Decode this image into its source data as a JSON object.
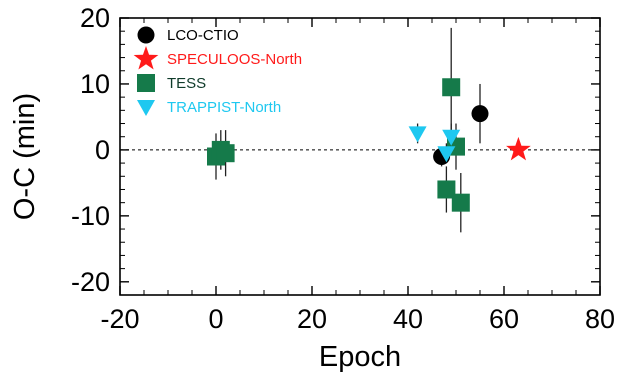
{
  "chart_data": {
    "type": "scatter",
    "xlabel": "Epoch",
    "ylabel": "O-C (min)",
    "xlim": [
      -20,
      80
    ],
    "ylim": [
      -22,
      20
    ],
    "x_ticks": [
      -20,
      0,
      20,
      40,
      60,
      80
    ],
    "y_ticks": [
      -20,
      -10,
      0,
      10,
      20
    ],
    "reference_line": {
      "y": 0,
      "style": "dotted"
    },
    "legend_position": "top-left",
    "series": [
      {
        "name": "LCO-CTIO",
        "marker": "circle",
        "color": "#000000",
        "points": [
          {
            "x": 47,
            "y": -1,
            "err": 1.5
          },
          {
            "x": 55,
            "y": 5.5,
            "err": 4.5
          }
        ]
      },
      {
        "name": "SPECULOOS-North",
        "marker": "star",
        "color": "#ff1a1a",
        "points": [
          {
            "x": 63,
            "y": 0,
            "err": 0
          }
        ]
      },
      {
        "name": "TESS",
        "marker": "square",
        "color": "#157a4a",
        "points": [
          {
            "x": 0,
            "y": -1,
            "err": 3.5
          },
          {
            "x": 1,
            "y": 0,
            "err": 3
          },
          {
            "x": 2,
            "y": -0.5,
            "err": 3.5
          },
          {
            "x": 48,
            "y": -6,
            "err": 3.5
          },
          {
            "x": 49,
            "y": 9.5,
            "err": 9
          },
          {
            "x": 50,
            "y": 0.5,
            "err": 3.5
          },
          {
            "x": 51,
            "y": -8,
            "err": 4.5
          }
        ]
      },
      {
        "name": "TRAPPIST-North",
        "marker": "triangle-down",
        "color": "#1ec8f0",
        "points": [
          {
            "x": 42,
            "y": 2.5,
            "err": 1.5
          },
          {
            "x": 48,
            "y": -0.5,
            "err": 1.5
          },
          {
            "x": 49,
            "y": 2,
            "err": 2
          }
        ]
      }
    ]
  }
}
